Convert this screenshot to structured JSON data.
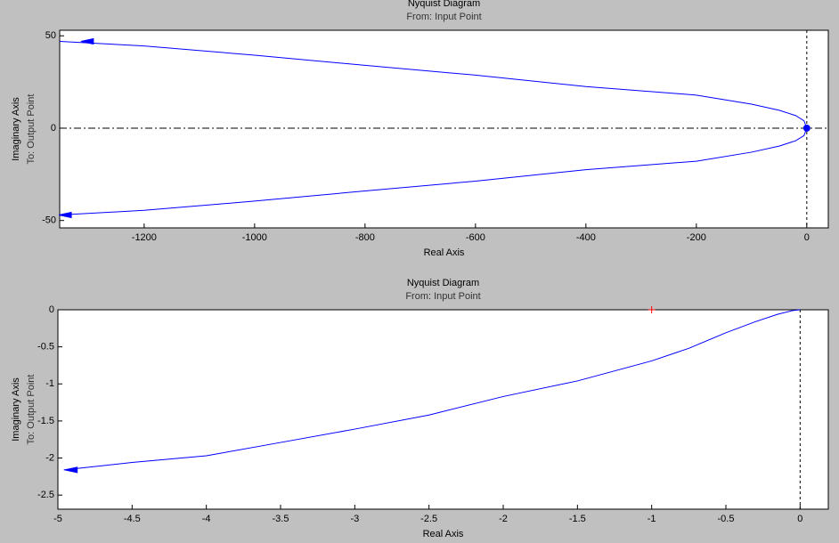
{
  "chart_data": [
    {
      "type": "line",
      "title": "Nyquist Diagram",
      "subtitle": "From: Input Point",
      "xlabel": "Real Axis",
      "ylabel": [
        "Imaginary Axis",
        "To: Output Point"
      ],
      "xlim": [
        -1353,
        39
      ],
      "ylim": [
        -54,
        53
      ],
      "xticks": [
        -1200,
        -1000,
        -800,
        -600,
        -400,
        -200,
        0
      ],
      "yticks": [
        -50,
        0,
        50
      ],
      "series": [
        {
          "color": "#0000ff",
          "x": [
            -1353,
            -1200,
            -1000,
            -800,
            -600,
            -400,
            -200,
            -100,
            -50,
            -20,
            -5,
            0,
            -5,
            -20,
            -50,
            -100,
            -200,
            -400,
            -600,
            -800,
            -1000,
            -1200,
            -1353
          ],
          "values": [
            47,
            44.5,
            39.5,
            34,
            28.7,
            22.5,
            17.9,
            13,
            9.7,
            6.8,
            4,
            0,
            -4,
            -6.8,
            -9.7,
            -13,
            -17.9,
            -22.5,
            -28.7,
            -34,
            -39.5,
            -44.5,
            -47
          ]
        }
      ],
      "markers": [
        {
          "x": 0,
          "y": 0,
          "color": "#0000ff",
          "shape": "dot"
        }
      ],
      "arrows": [
        {
          "x": -1300,
          "y": 47,
          "color": "#0000ff"
        },
        {
          "x": -1340,
          "y": -47,
          "color": "#0000ff"
        }
      ]
    },
    {
      "type": "line",
      "title": "Nyquist Diagram",
      "subtitle": "From: Input Point",
      "xlabel": "Real Axis",
      "ylabel": [
        "Imaginary Axis",
        "To: Output Point"
      ],
      "xlim": [
        -5,
        0.19
      ],
      "ylim": [
        -2.69,
        0
      ],
      "xticks": [
        -5,
        -4.5,
        -4,
        -3.5,
        -3,
        -2.5,
        -2,
        -1.5,
        -1,
        -0.5,
        0
      ],
      "yticks": [
        -2.5,
        -2,
        -1.5,
        -1,
        -0.5,
        0
      ],
      "series": [
        {
          "color": "#0000ff",
          "x": [
            -4.96,
            -4.5,
            -4,
            -3.5,
            -3,
            -2.5,
            -2,
            -1.5,
            -1,
            -0.75,
            -0.5,
            -0.3,
            -0.15,
            -0.05,
            0
          ],
          "values": [
            -2.16,
            -2.06,
            -1.97,
            -1.79,
            -1.61,
            -1.42,
            -1.17,
            -0.96,
            -0.69,
            -0.52,
            -0.31,
            -0.16,
            -0.06,
            -0.01,
            0
          ]
        }
      ],
      "markers": [
        {
          "x": -1,
          "y": 0,
          "color": "#ff0000",
          "shape": "plus"
        }
      ],
      "arrows": [
        {
          "x": -4.9,
          "y": -2.16,
          "color": "#0000ff"
        }
      ]
    }
  ]
}
